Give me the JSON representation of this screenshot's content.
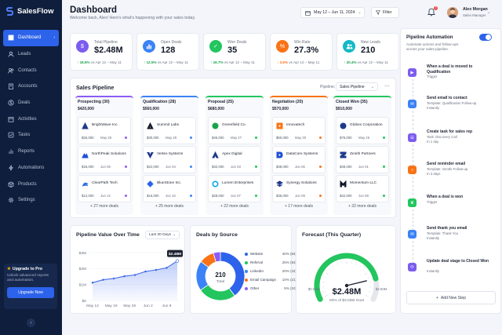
{
  "app": {
    "name": "SalesFlow"
  },
  "sidebar": {
    "items": [
      {
        "label": "Dashboard",
        "icon": "grid-icon"
      },
      {
        "label": "Leads",
        "icon": "user-icon"
      },
      {
        "label": "Contacts",
        "icon": "contacts-icon"
      },
      {
        "label": "Accounts",
        "icon": "building-icon"
      },
      {
        "label": "Deals",
        "icon": "dollar-icon"
      },
      {
        "label": "Activities",
        "icon": "calendar-icon"
      },
      {
        "label": "Tasks",
        "icon": "check-square-icon"
      },
      {
        "label": "Reports",
        "icon": "chart-icon"
      },
      {
        "label": "Automations",
        "icon": "zap-icon"
      },
      {
        "label": "Products",
        "icon": "box-icon"
      },
      {
        "label": "Settings",
        "icon": "gear-icon"
      }
    ],
    "upgrade": {
      "title": "Upgrade to Pro",
      "desc": "Unlock advanced reports and automation.",
      "button": "Upgrade Now"
    }
  },
  "header": {
    "title": "Dashboard",
    "subtitle": "Welcome back, Alex! Here's what's happening with your sales today.",
    "date_range": "May 12 – Jun 11, 2024",
    "filter": "Filter",
    "notif_count": "3",
    "user_name": "Alex Morgan",
    "user_role": "Sales Manager"
  },
  "stats": [
    {
      "label": "Total Pipeline",
      "value": "$2.48M",
      "change": "18.6%",
      "trend": "up",
      "period": "vs Apr 12 – May 11",
      "color": "#7c5cf0",
      "icon": "dollar-icon"
    },
    {
      "label": "Open Deals",
      "value": "128",
      "change": "12.5%",
      "trend": "up",
      "period": "vs Apr 12 – May 11",
      "color": "#3b82f6",
      "icon": "bar-chart-icon"
    },
    {
      "label": "Won Deals",
      "value": "35",
      "change": "16.7%",
      "trend": "up",
      "period": "vs Apr 12 – May 11",
      "color": "#22c55e",
      "icon": "check-icon"
    },
    {
      "label": "Win Rate",
      "value": "27.3%",
      "change": "3.6%",
      "trend": "down",
      "period": "vs Apr 12 – May 11",
      "color": "#f97316",
      "icon": "percent-icon"
    },
    {
      "label": "New Leads",
      "value": "210",
      "change": "20.4%",
      "trend": "up",
      "period": "vs Apr 12 – May 11",
      "color": "#14b8c6",
      "icon": "users-icon"
    }
  ],
  "pipeline": {
    "title": "Sales Pipeline",
    "selector_label": "Pipeline:",
    "selector_value": "Sales Pipeline",
    "stages": [
      {
        "name": "Prospecting (30)",
        "value": "$420,000",
        "color": "#8b5cf6",
        "more": "+ 27 more deals",
        "deals": [
          {
            "name": "BrightWave Inc.",
            "amount": "$25,000",
            "date": "May 28",
            "dot": "#8b5cf6",
            "logo": "#1e3a8a"
          },
          {
            "name": "NorthPeak Solutions",
            "amount": "$18,000",
            "date": "Jun 05",
            "dot": "#8b5cf6",
            "logo": "#1d4ed8"
          },
          {
            "name": "ClearPath Tech",
            "amount": "$12,000",
            "date": "Jun 12",
            "dot": "#8b5cf6",
            "logo": "#2563eb"
          }
        ]
      },
      {
        "name": "Qualification (28)",
        "value": "$560,000",
        "color": "#3b82f6",
        "more": "+ 25 more deals",
        "deals": [
          {
            "name": "Summit Labs",
            "amount": "$30,000",
            "date": "May 29",
            "dot": "#3b82f6",
            "logo": "#111827"
          },
          {
            "name": "Vertex Systems",
            "amount": "$22,000",
            "date": "Jun 04",
            "dot": "#3b82f6",
            "logo": "#1e3a8a"
          },
          {
            "name": "BlueStone Inc.",
            "amount": "$16,000",
            "date": "Jun 10",
            "dot": "#3b82f6",
            "logo": "#2563eb"
          }
        ]
      },
      {
        "name": "Proposal (25)",
        "value": "$680,000",
        "color": "#22c55e",
        "more": "+ 22 more deals",
        "deals": [
          {
            "name": "Greenfield Co.",
            "amount": "$45,000",
            "date": "May 27",
            "dot": "#22c55e",
            "logo": "#16a34a"
          },
          {
            "name": "Apex Digital",
            "amount": "$32,000",
            "date": "Jun 03",
            "dot": "#22c55e",
            "logo": "#1e3a8a"
          },
          {
            "name": "Lumen Enterprises",
            "amount": "$28,000",
            "date": "Jun 07",
            "dot": "#22c55e",
            "logo": "#0ea5e9"
          }
        ]
      },
      {
        "name": "Negotiation (20)",
        "value": "$570,000",
        "color": "#f97316",
        "more": "+ 17 more deals",
        "deals": [
          {
            "name": "Innovatech",
            "amount": "$50,000",
            "date": "May 30",
            "dot": "#f97316",
            "logo": "#f97316"
          },
          {
            "name": "DataCore Systems",
            "amount": "$38,000",
            "date": "Jun 06",
            "dot": "#f97316",
            "logo": "#1d4ed8"
          },
          {
            "name": "Synergy Solutions",
            "amount": "$35,000",
            "date": "Jun 09",
            "dot": "#f97316",
            "logo": "#1e3a8a"
          }
        ]
      },
      {
        "name": "Closed Won (35)",
        "value": "$910,000",
        "color": "#22c55e",
        "more": "+ 32 more deals",
        "deals": [
          {
            "name": "Globex Corporation",
            "amount": "$75,000",
            "date": "May 25",
            "dot": "#22c55e",
            "logo": "#1e3a8a"
          },
          {
            "name": "Zenith Partners",
            "amount": "$48,000",
            "date": "Jun 01",
            "dot": "#22c55e",
            "logo": "#1e3a8a"
          },
          {
            "name": "Momentum LLC",
            "amount": "$42,000",
            "date": "Jun 08",
            "dot": "#22c55e",
            "logo": "#111827"
          }
        ]
      }
    ]
  },
  "value_chart": {
    "title": "Pipeline Value Over Time",
    "range": "Last 30 Days",
    "tooltip": "$2.48M"
  },
  "chart_data": [
    {
      "type": "area",
      "title": "Pipeline Value Over Time",
      "x": [
        "May 12",
        "May 16",
        "May 20",
        "May 24",
        "May 28",
        "Jun 1",
        "Jun 5",
        "Jun 9",
        "Jun 11"
      ],
      "xticks": [
        "May 12",
        "May 19",
        "May 26",
        "Jun 2",
        "Jun 9"
      ],
      "yticks": [
        "$0",
        "$1M",
        "$2M",
        "$3M"
      ],
      "ylim": [
        0,
        3.2
      ],
      "series": [
        {
          "values": [
            1.12,
            1.3,
            1.38,
            1.52,
            1.6,
            1.82,
            1.92,
            2.05,
            2.48
          ]
        }
      ]
    },
    {
      "type": "pie",
      "title": "Deals by Source",
      "center_value": "210",
      "center_label": "Total",
      "slices": [
        {
          "label": "Website",
          "count": 84,
          "pct": "40% (84)",
          "color": "#2d63ea"
        },
        {
          "label": "Referral",
          "count": 53,
          "pct": "25% (53)",
          "color": "#22c55e"
        },
        {
          "label": "LinkedIn",
          "count": 42,
          "pct": "20% (42)",
          "color": "#3b82f6"
        },
        {
          "label": "Email Campaign",
          "count": 21,
          "pct": "10% (21)",
          "color": "#f97316"
        },
        {
          "label": "Other",
          "count": 10,
          "pct": "5% (10)",
          "color": "#8b5cf6"
        }
      ]
    },
    {
      "type": "gauge",
      "title": "Forecast (This Quarter)",
      "value": 2.48,
      "goal": 3.0,
      "value_label": "$2.48M",
      "caption": "83% of $3.00M Goal",
      "min_label": "$0.00M",
      "max_label": "$3.00M"
    }
  ],
  "automation": {
    "title": "Pipeline Automation",
    "desc": "Automate actions and follow-ups across your sales pipeline.",
    "steps": [
      {
        "title": "When a deal is moved to Qualification",
        "sub": "Trigger",
        "color": "#7c5cf0",
        "icon": "play-icon"
      },
      {
        "title": "Send email to contact",
        "sub": "Template: Qualification Follow-up\nInstantly",
        "color": "#3b82f6",
        "icon": "mail-icon"
      },
      {
        "title": "Create task for sales rep",
        "sub": "Task: Discovery Call\nIn 1 day",
        "color": "#7c5cf0",
        "icon": "task-icon"
      },
      {
        "title": "Send reminder email",
        "sub": "Template: Gentle Follow-up\nIn 3 days",
        "color": "#f97316",
        "icon": "bell-icon"
      },
      {
        "title": "When a deal is won",
        "sub": "Trigger",
        "color": "#22c55e",
        "icon": "trophy-icon"
      },
      {
        "title": "Send thank you email",
        "sub": "Template: Thank You\nInstantly",
        "color": "#3b82f6",
        "icon": "mail-icon"
      },
      {
        "title": "Update deal stage to Closed Won",
        "sub": "Instantly",
        "color": "#7c5cf0",
        "icon": "refresh-icon"
      }
    ],
    "add_step": "Add New Step"
  }
}
